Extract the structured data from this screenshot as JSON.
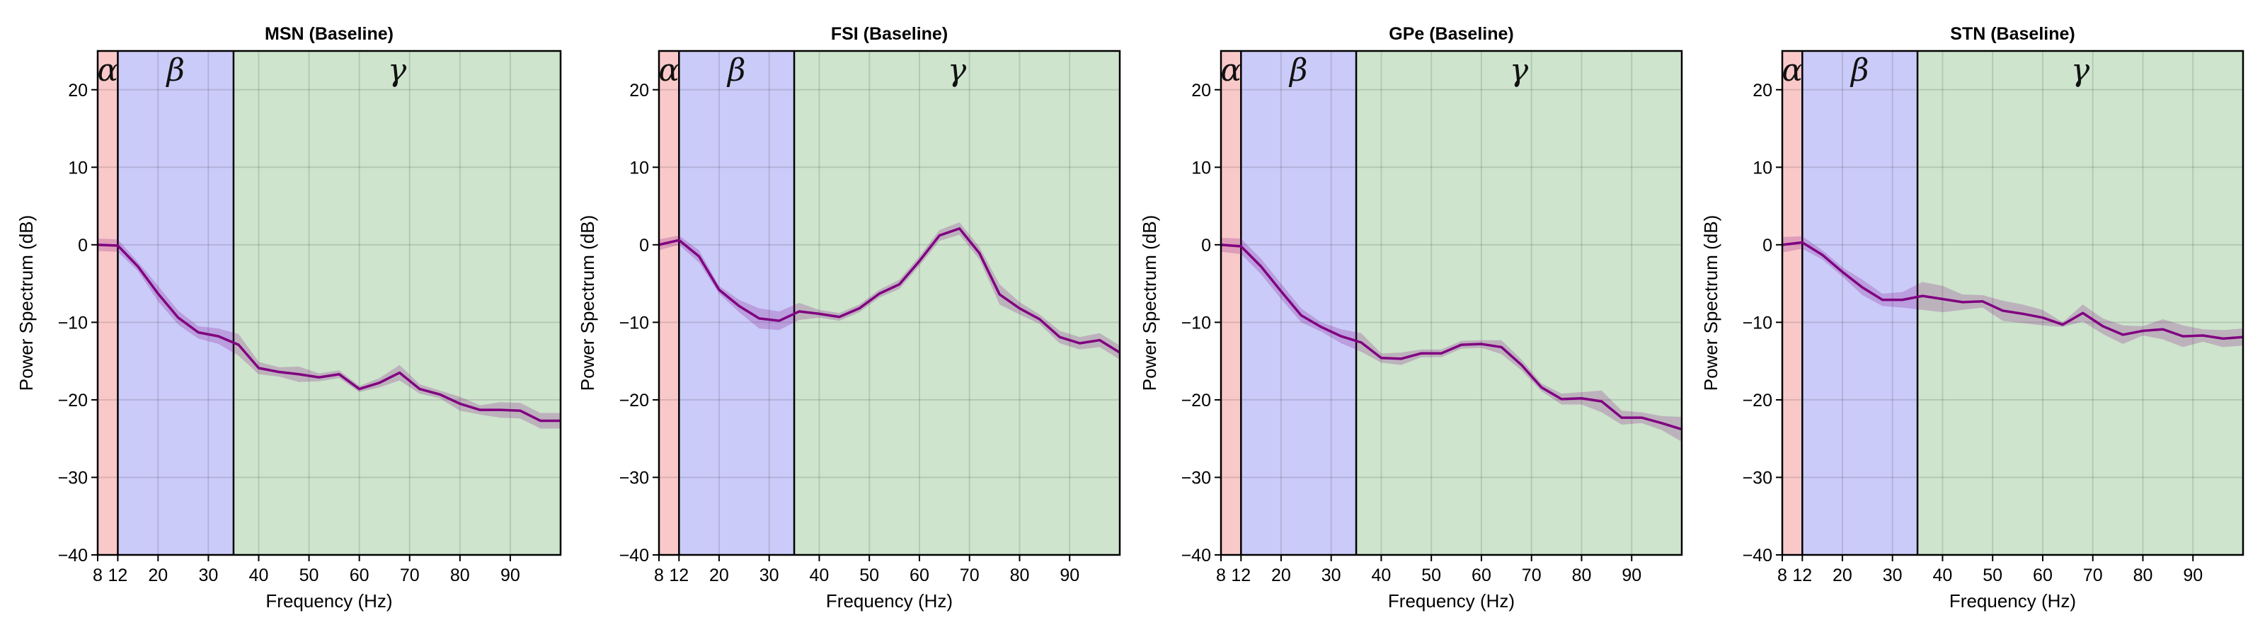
{
  "chart_data": [
    {
      "type": "line",
      "title": "MSN (Baseline)",
      "xlabel": "Frequency (Hz)",
      "ylabel": "Power Spectrum (dB)",
      "xlim": [
        8,
        100
      ],
      "ylim": [
        -40,
        25
      ],
      "xticks": [
        8,
        12,
        20,
        30,
        40,
        50,
        60,
        70,
        80,
        90
      ],
      "yticks": [
        -40,
        -30,
        -20,
        -10,
        0,
        10,
        20
      ],
      "grid": true,
      "bands": [
        {
          "label": "α",
          "from": 8,
          "to": 12,
          "color": "#f9c9c9"
        },
        {
          "label": "β",
          "from": 12,
          "to": 35,
          "color": "#cbcbf9"
        },
        {
          "label": "γ",
          "from": 35,
          "to": 100,
          "color": "#cee4cd"
        }
      ],
      "line_color": "#800080",
      "x": [
        8,
        12,
        16,
        20,
        24,
        28,
        32,
        36,
        40,
        44,
        48,
        52,
        56,
        60,
        64,
        68,
        72,
        76,
        80,
        84,
        88,
        92,
        96,
        100
      ],
      "y": [
        0,
        -0.1,
        -2.8,
        -6.3,
        -9.4,
        -11.3,
        -11.8,
        -12.9,
        -15.9,
        -16.4,
        -16.7,
        -17.1,
        -16.7,
        -18.6,
        -17.8,
        -16.5,
        -18.6,
        -19.3,
        -20.5,
        -21.3,
        -21.3,
        -21.4,
        -22.7,
        -22.7
      ],
      "err": [
        0.8,
        0.8,
        0.6,
        1.0,
        0.9,
        0.8,
        1.0,
        1.4,
        0.8,
        0.6,
        1.0,
        0.5,
        0.5,
        0.4,
        0.6,
        1.0,
        0.6,
        0.5,
        0.9,
        0.6,
        1.0,
        1.0,
        1.0,
        1.0
      ]
    },
    {
      "type": "line",
      "title": "FSI (Baseline)",
      "xlabel": "Frequency (Hz)",
      "ylabel": "Power Spectrum (dB)",
      "xlim": [
        8,
        100
      ],
      "ylim": [
        -40,
        25
      ],
      "xticks": [
        8,
        12,
        20,
        30,
        40,
        50,
        60,
        70,
        80,
        90
      ],
      "yticks": [
        -40,
        -30,
        -20,
        -10,
        0,
        10,
        20
      ],
      "grid": true,
      "bands": [
        {
          "label": "α",
          "from": 8,
          "to": 12,
          "color": "#f9c9c9"
        },
        {
          "label": "β",
          "from": 12,
          "to": 35,
          "color": "#cbcbf9"
        },
        {
          "label": "γ",
          "from": 35,
          "to": 100,
          "color": "#cee4cd"
        }
      ],
      "line_color": "#800080",
      "x": [
        8,
        12,
        16,
        20,
        24,
        28,
        32,
        36,
        40,
        44,
        48,
        52,
        56,
        60,
        64,
        68,
        72,
        76,
        80,
        84,
        88,
        92,
        96,
        100
      ],
      "y": [
        0,
        0.6,
        -1.5,
        -5.8,
        -7.9,
        -9.5,
        -9.8,
        -8.6,
        -8.9,
        -9.3,
        -8.2,
        -6.3,
        -5.1,
        -2.1,
        1.2,
        2.1,
        -1.1,
        -6.4,
        -8.2,
        -9.6,
        -11.9,
        -12.7,
        -12.3,
        -13.9
      ],
      "err": [
        0.7,
        0.6,
        0.8,
        0.5,
        0.8,
        1.3,
        1.2,
        1.1,
        0.5,
        0.5,
        0.5,
        0.5,
        0.6,
        0.6,
        0.7,
        0.8,
        0.8,
        1.3,
        0.8,
        0.6,
        0.8,
        0.8,
        0.9,
        0.9
      ]
    },
    {
      "type": "line",
      "title": "GPe (Baseline)",
      "xlabel": "Frequency (Hz)",
      "ylabel": "Power Spectrum (dB)",
      "xlim": [
        8,
        100
      ],
      "ylim": [
        -40,
        25
      ],
      "xticks": [
        8,
        12,
        20,
        30,
        40,
        50,
        60,
        70,
        80,
        90
      ],
      "yticks": [
        -40,
        -30,
        -20,
        -10,
        0,
        10,
        20
      ],
      "grid": true,
      "bands": [
        {
          "label": "α",
          "from": 8,
          "to": 12,
          "color": "#f9c9c9"
        },
        {
          "label": "β",
          "from": 12,
          "to": 35,
          "color": "#cbcbf9"
        },
        {
          "label": "γ",
          "from": 35,
          "to": 100,
          "color": "#cee4cd"
        }
      ],
      "line_color": "#800080",
      "x": [
        8,
        12,
        16,
        20,
        24,
        28,
        32,
        36,
        40,
        44,
        48,
        52,
        56,
        60,
        64,
        68,
        72,
        76,
        80,
        84,
        88,
        92,
        96,
        100
      ],
      "y": [
        0,
        -0.2,
        -2.8,
        -6.0,
        -9.1,
        -10.6,
        -11.8,
        -12.6,
        -14.6,
        -14.7,
        -14.0,
        -14.0,
        -12.9,
        -12.8,
        -13.2,
        -15.5,
        -18.4,
        -19.9,
        -19.8,
        -20.2,
        -22.3,
        -22.3,
        -23.0,
        -23.8
      ],
      "err": [
        0.9,
        1.0,
        1.0,
        1.0,
        0.9,
        0.6,
        0.9,
        1.2,
        0.6,
        0.8,
        0.5,
        0.5,
        0.5,
        0.5,
        0.9,
        0.7,
        0.5,
        0.7,
        0.8,
        1.4,
        0.9,
        0.7,
        0.9,
        1.6
      ]
    },
    {
      "type": "line",
      "title": "STN (Baseline)",
      "xlabel": "Frequency (Hz)",
      "ylabel": "Power Spectrum (dB)",
      "xlim": [
        8,
        100
      ],
      "ylim": [
        -40,
        25
      ],
      "xticks": [
        8,
        12,
        20,
        30,
        40,
        50,
        60,
        70,
        80,
        90
      ],
      "yticks": [
        -40,
        -30,
        -20,
        -10,
        0,
        10,
        20
      ],
      "grid": true,
      "bands": [
        {
          "label": "α",
          "from": 8,
          "to": 12,
          "color": "#f9c9c9"
        },
        {
          "label": "β",
          "from": 12,
          "to": 35,
          "color": "#cbcbf9"
        },
        {
          "label": "γ",
          "from": 35,
          "to": 100,
          "color": "#cee4cd"
        }
      ],
      "line_color": "#800080",
      "x": [
        8,
        12,
        16,
        20,
        24,
        28,
        32,
        36,
        40,
        44,
        48,
        52,
        56,
        60,
        64,
        68,
        72,
        76,
        80,
        84,
        88,
        92,
        96,
        100
      ],
      "y": [
        0,
        0.3,
        -1.3,
        -3.5,
        -5.5,
        -7.1,
        -7.1,
        -6.6,
        -7.0,
        -7.4,
        -7.3,
        -8.5,
        -8.9,
        -9.4,
        -10.3,
        -8.8,
        -10.5,
        -11.6,
        -11.1,
        -10.9,
        -11.8,
        -11.7,
        -12.1,
        -11.9
      ],
      "err": [
        1.0,
        0.8,
        0.6,
        0.6,
        1.0,
        0.8,
        1.0,
        1.8,
        1.7,
        1.0,
        0.8,
        1.3,
        1.2,
        1.0,
        0.3,
        1.1,
        1.0,
        1.2,
        0.6,
        1.3,
        1.4,
        0.8,
        1.1,
        1.1
      ]
    }
  ]
}
